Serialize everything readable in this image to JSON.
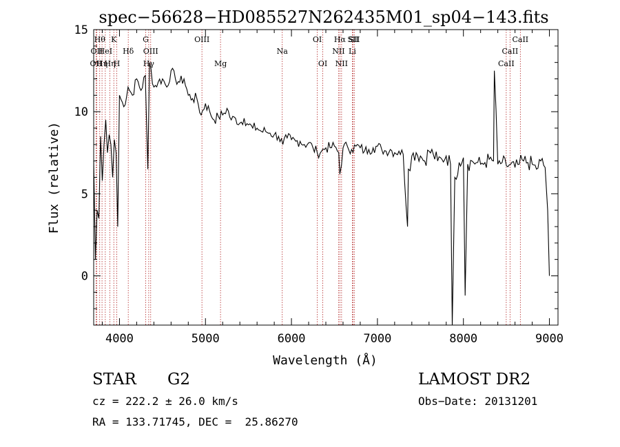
{
  "chart_data": {
    "type": "line",
    "title": "spec−56628−HD085527N262435M01_sp04−143.fits",
    "xlabel": "Wavelength (Å)",
    "ylabel": "Flux (relative)",
    "xlim": [
      3700,
      9100
    ],
    "ylim": [
      -3,
      15
    ],
    "xticks": [
      "4000",
      "5000",
      "6000",
      "7000",
      "8000",
      "9000"
    ],
    "xtick_values": [
      4000,
      5000,
      6000,
      7000,
      8000,
      9000
    ],
    "yticks": [
      "0",
      "5",
      "10",
      "15"
    ],
    "ytick_values": [
      0,
      5,
      10,
      15
    ],
    "line_color": "#000000",
    "marker_color": "#b22222",
    "series": [
      {
        "x": [
          3700,
          3720,
          3740,
          3760,
          3780,
          3800,
          3820,
          3840,
          3860,
          3880,
          3900,
          3920,
          3940,
          3960,
          3980,
          4000,
          4050,
          4100,
          4150,
          4200,
          4250,
          4300,
          4330,
          4350,
          4400,
          4450,
          4500,
          4550,
          4600,
          4650,
          4700,
          4750,
          4800,
          4850,
          4900,
          4950,
          5000,
          5050,
          5100,
          5150,
          5200,
          5250,
          5300,
          5350,
          5400,
          5450,
          5500,
          5550,
          5600,
          5650,
          5700,
          5750,
          5800,
          5850,
          5900,
          5950,
          6000,
          6050,
          6100,
          6150,
          6200,
          6250,
          6300,
          6350,
          6400,
          6450,
          6500,
          6550,
          6563,
          6600,
          6650,
          6700,
          6750,
          6800,
          6850,
          6900,
          6950,
          7000,
          7050,
          7100,
          7150,
          7200,
          7250,
          7300,
          7350,
          7360,
          7400,
          7450,
          7500,
          7550,
          7600,
          7650,
          7700,
          7750,
          7800,
          7850,
          7870,
          7900,
          7950,
          8000,
          8020,
          8050,
          8100,
          8150,
          8200,
          8250,
          8300,
          8350,
          8360,
          8400,
          8450,
          8500,
          8550,
          8600,
          8650,
          8700,
          8750,
          8800,
          8850,
          8900,
          8950,
          8980,
          9000
        ],
        "y": [
          7.0,
          1.0,
          4.0,
          3.5,
          8.5,
          5.8,
          8.0,
          9.5,
          7.5,
          8.6,
          8.0,
          6.0,
          8.3,
          7.5,
          3.0,
          11.0,
          10.3,
          11.5,
          11.0,
          12.0,
          11.3,
          12.2,
          6.5,
          13.0,
          11.5,
          11.8,
          12.0,
          11.5,
          12.5,
          12.0,
          11.8,
          12.0,
          11.0,
          10.8,
          10.8,
          9.8,
          10.5,
          10.0,
          9.5,
          9.7,
          9.8,
          10.2,
          9.5,
          9.6,
          9.3,
          9.6,
          9.2,
          9.0,
          9.0,
          8.8,
          8.8,
          8.7,
          8.6,
          8.5,
          8.0,
          8.4,
          8.3,
          8.2,
          8.2,
          8.0,
          8.1,
          7.8,
          7.5,
          7.6,
          7.8,
          7.8,
          7.9,
          7.5,
          6.2,
          7.8,
          7.9,
          7.7,
          7.9,
          7.8,
          7.6,
          7.7,
          7.8,
          7.9,
          7.7,
          7.6,
          7.7,
          7.5,
          7.6,
          7.4,
          3.0,
          6.5,
          7.3,
          7.5,
          7.3,
          7.0,
          7.6,
          7.4,
          7.0,
          7.1,
          7.3,
          6.8,
          -3.0,
          6.0,
          6.9,
          7.2,
          -1.2,
          6.8,
          7.0,
          6.9,
          6.8,
          6.9,
          7.1,
          7.0,
          12.5,
          6.8,
          6.9,
          6.7,
          6.8,
          6.6,
          6.8,
          7.0,
          6.9,
          6.8,
          6.5,
          7.0,
          6.6,
          4.0,
          0.0
        ]
      }
    ],
    "line_markers": [
      {
        "x": 3727,
        "label": "OII",
        "row": 2
      },
      {
        "x": 3735,
        "label": "OII",
        "row": 1
      },
      {
        "x": 3770,
        "label": "Hθ",
        "row": 0
      },
      {
        "x": 3797,
        "label": "Hη",
        "row": 2
      },
      {
        "x": 3835,
        "label": "HeI",
        "row": 1
      },
      {
        "x": 3889,
        "label": "Hη",
        "row": 2
      },
      {
        "x": 3934,
        "label": "K",
        "row": 0
      },
      {
        "x": 3969,
        "label": "H",
        "row": 2
      },
      {
        "x": 4102,
        "label": "Hδ",
        "row": 1
      },
      {
        "x": 4305,
        "label": "G",
        "row": 0
      },
      {
        "x": 4340,
        "label": "Hγ",
        "row": 2
      },
      {
        "x": 4363,
        "label": "OIII",
        "row": 1
      },
      {
        "x": 4959,
        "label": "OIII",
        "row": 0
      },
      {
        "x": 5175,
        "label": "Mg",
        "row": 2
      },
      {
        "x": 5893,
        "label": "Na",
        "row": 1
      },
      {
        "x": 6300,
        "label": "OI",
        "row": 0
      },
      {
        "x": 6364,
        "label": "OI",
        "row": 2
      },
      {
        "x": 6548,
        "label": "NII",
        "row": 1
      },
      {
        "x": 6563,
        "label": "Hα",
        "row": 0
      },
      {
        "x": 6583,
        "label": "NII",
        "row": 2
      },
      {
        "x": 6708,
        "label": "Li",
        "row": 1
      },
      {
        "x": 6716,
        "label": "SII",
        "row": 0
      },
      {
        "x": 6731,
        "label": "SII",
        "row": 0
      },
      {
        "x": 8498,
        "label": "CaII",
        "row": 2
      },
      {
        "x": 8542,
        "label": "CaII",
        "row": 1
      },
      {
        "x": 8662,
        "label": "CaII",
        "row": 0
      }
    ]
  },
  "info": {
    "object_type": "STAR",
    "subclass": "G2",
    "survey": "LAMOST DR2",
    "redshift": "cz = 222.2 ± 26.0 km/s",
    "obs_date": "Obs−Date: 20131201",
    "coords": "RA = 133.71745, DEC =  25.86270"
  }
}
